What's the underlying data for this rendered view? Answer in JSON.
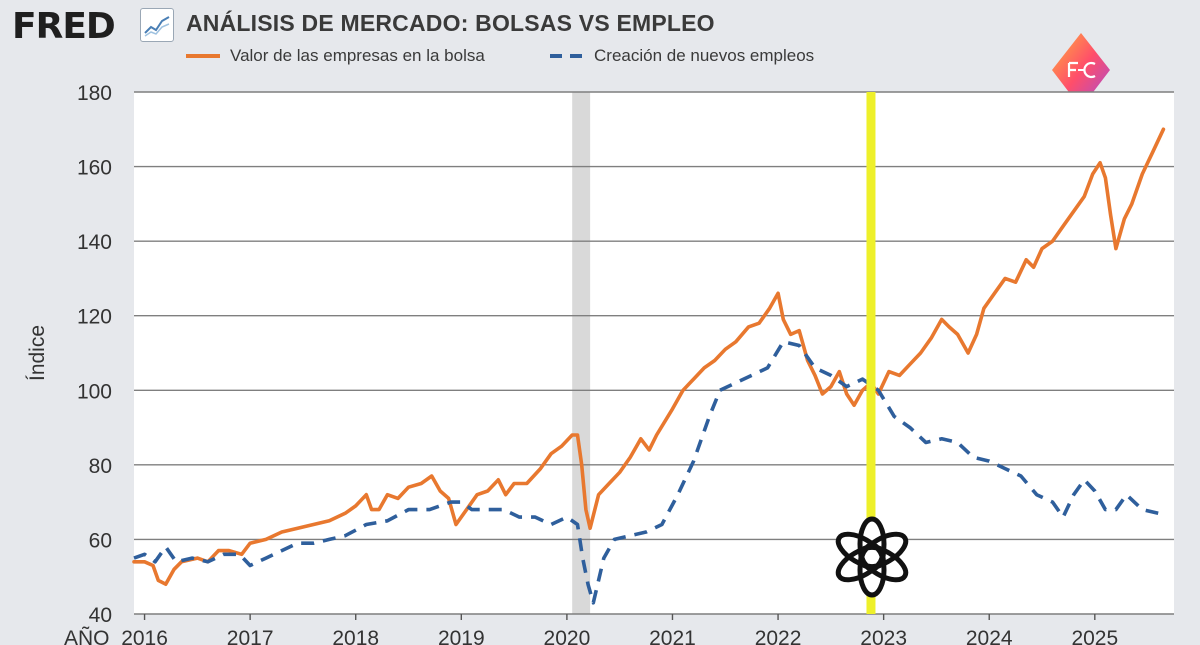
{
  "header": {
    "logo_text": "FRED",
    "title": "ANÁLISIS DE MERCADO: BOLSAS VS EMPLEO"
  },
  "colors": {
    "stock": "#e8782f",
    "employment": "#2f5f9c",
    "recession_band": "#d9d9d9",
    "highlight_line": "#eef02a",
    "plot_background": "#ffffff",
    "gridline": "#7f7f7f"
  },
  "icons": {
    "fred_chart": "trend-line-icon",
    "brand": "fc-diamond-logo-icon",
    "openai": "openai-knot-logo"
  },
  "chart_data": {
    "type": "line",
    "title": "ANÁLISIS DE MERCADO: BOLSAS VS EMPLEO",
    "ylabel": "Índice",
    "xlabel": "AÑO",
    "xlim": [
      2015.9,
      2025.75
    ],
    "ylim": [
      40,
      180
    ],
    "xticks": [
      2016,
      2017,
      2018,
      2019,
      2020,
      2021,
      2022,
      2023,
      2024,
      2025
    ],
    "yticks": [
      40,
      60,
      80,
      100,
      120,
      140,
      160,
      180
    ],
    "grid": "horizontal",
    "legend_position": "top-left",
    "shaded_region": [
      2020.05,
      2020.22
    ],
    "highlight_line_x": 2022.88,
    "series": [
      {
        "name": "Valor de las empresas en la bolsa",
        "style": "solid",
        "points": [
          [
            2015.9,
            54
          ],
          [
            2016.0,
            54
          ],
          [
            2016.08,
            53
          ],
          [
            2016.13,
            49
          ],
          [
            2016.2,
            48
          ],
          [
            2016.28,
            52
          ],
          [
            2016.35,
            54
          ],
          [
            2016.5,
            55
          ],
          [
            2016.6,
            54
          ],
          [
            2016.7,
            57
          ],
          [
            2016.8,
            57
          ],
          [
            2016.92,
            56
          ],
          [
            2017.0,
            59
          ],
          [
            2017.15,
            60
          ],
          [
            2017.3,
            62
          ],
          [
            2017.45,
            63
          ],
          [
            2017.6,
            64
          ],
          [
            2017.75,
            65
          ],
          [
            2017.9,
            67
          ],
          [
            2018.0,
            69
          ],
          [
            2018.1,
            72
          ],
          [
            2018.15,
            68
          ],
          [
            2018.22,
            68
          ],
          [
            2018.3,
            72
          ],
          [
            2018.4,
            71
          ],
          [
            2018.5,
            74
          ],
          [
            2018.62,
            75
          ],
          [
            2018.72,
            77
          ],
          [
            2018.8,
            73
          ],
          [
            2018.88,
            71
          ],
          [
            2018.95,
            64
          ],
          [
            2019.05,
            68
          ],
          [
            2019.15,
            72
          ],
          [
            2019.25,
            73
          ],
          [
            2019.35,
            76
          ],
          [
            2019.42,
            72
          ],
          [
            2019.5,
            75
          ],
          [
            2019.62,
            75
          ],
          [
            2019.75,
            79
          ],
          [
            2019.85,
            83
          ],
          [
            2019.95,
            85
          ],
          [
            2020.05,
            88
          ],
          [
            2020.1,
            88
          ],
          [
            2020.14,
            80
          ],
          [
            2020.18,
            68
          ],
          [
            2020.22,
            63
          ],
          [
            2020.3,
            72
          ],
          [
            2020.4,
            75
          ],
          [
            2020.5,
            78
          ],
          [
            2020.6,
            82
          ],
          [
            2020.7,
            87
          ],
          [
            2020.78,
            84
          ],
          [
            2020.85,
            88
          ],
          [
            2021.0,
            95
          ],
          [
            2021.1,
            100
          ],
          [
            2021.2,
            103
          ],
          [
            2021.3,
            106
          ],
          [
            2021.4,
            108
          ],
          [
            2021.5,
            111
          ],
          [
            2021.6,
            113
          ],
          [
            2021.72,
            117
          ],
          [
            2021.82,
            118
          ],
          [
            2021.92,
            122
          ],
          [
            2022.0,
            126
          ],
          [
            2022.05,
            119
          ],
          [
            2022.12,
            115
          ],
          [
            2022.2,
            116
          ],
          [
            2022.28,
            108
          ],
          [
            2022.35,
            104
          ],
          [
            2022.42,
            99
          ],
          [
            2022.5,
            101
          ],
          [
            2022.58,
            105
          ],
          [
            2022.65,
            99
          ],
          [
            2022.72,
            96
          ],
          [
            2022.8,
            100
          ],
          [
            2022.88,
            102
          ],
          [
            2022.95,
            99
          ],
          [
            2023.05,
            105
          ],
          [
            2023.15,
            104
          ],
          [
            2023.25,
            107
          ],
          [
            2023.35,
            110
          ],
          [
            2023.45,
            114
          ],
          [
            2023.55,
            119
          ],
          [
            2023.62,
            117
          ],
          [
            2023.7,
            115
          ],
          [
            2023.8,
            110
          ],
          [
            2023.88,
            115
          ],
          [
            2023.95,
            122
          ],
          [
            2024.05,
            126
          ],
          [
            2024.15,
            130
          ],
          [
            2024.25,
            129
          ],
          [
            2024.35,
            135
          ],
          [
            2024.42,
            133
          ],
          [
            2024.5,
            138
          ],
          [
            2024.6,
            140
          ],
          [
            2024.7,
            144
          ],
          [
            2024.8,
            148
          ],
          [
            2024.9,
            152
          ],
          [
            2024.98,
            158
          ],
          [
            2025.05,
            161
          ],
          [
            2025.1,
            157
          ],
          [
            2025.15,
            147
          ],
          [
            2025.2,
            138
          ],
          [
            2025.28,
            146
          ],
          [
            2025.35,
            150
          ],
          [
            2025.45,
            158
          ],
          [
            2025.55,
            164
          ],
          [
            2025.65,
            170
          ]
        ]
      },
      {
        "name": "Creación de nuevos empleos",
        "style": "dashed",
        "points": [
          [
            2015.9,
            55
          ],
          [
            2016.0,
            56
          ],
          [
            2016.1,
            54
          ],
          [
            2016.2,
            58
          ],
          [
            2016.3,
            54
          ],
          [
            2016.45,
            55
          ],
          [
            2016.6,
            54
          ],
          [
            2016.75,
            56
          ],
          [
            2016.9,
            56
          ],
          [
            2017.0,
            53
          ],
          [
            2017.15,
            55
          ],
          [
            2017.3,
            57
          ],
          [
            2017.45,
            59
          ],
          [
            2017.6,
            59
          ],
          [
            2017.75,
            60
          ],
          [
            2017.9,
            61
          ],
          [
            2018.1,
            64
          ],
          [
            2018.3,
            65
          ],
          [
            2018.5,
            68
          ],
          [
            2018.7,
            68
          ],
          [
            2018.9,
            70
          ],
          [
            2019.0,
            70
          ],
          [
            2019.1,
            68
          ],
          [
            2019.25,
            68
          ],
          [
            2019.4,
            68
          ],
          [
            2019.55,
            66
          ],
          [
            2019.7,
            66
          ],
          [
            2019.85,
            64
          ],
          [
            2020.0,
            66
          ],
          [
            2020.1,
            64
          ],
          [
            2020.15,
            55
          ],
          [
            2020.2,
            48
          ],
          [
            2020.25,
            43
          ],
          [
            2020.35,
            55
          ],
          [
            2020.45,
            60
          ],
          [
            2020.6,
            61
          ],
          [
            2020.75,
            62
          ],
          [
            2020.9,
            64
          ],
          [
            2021.05,
            72
          ],
          [
            2021.2,
            81
          ],
          [
            2021.35,
            93
          ],
          [
            2021.45,
            100
          ],
          [
            2021.6,
            102
          ],
          [
            2021.75,
            104
          ],
          [
            2021.9,
            106
          ],
          [
            2022.05,
            113
          ],
          [
            2022.2,
            112
          ],
          [
            2022.35,
            106
          ],
          [
            2022.5,
            104
          ],
          [
            2022.65,
            101
          ],
          [
            2022.8,
            103
          ],
          [
            2022.95,
            100
          ],
          [
            2023.1,
            93
          ],
          [
            2023.25,
            90
          ],
          [
            2023.4,
            86
          ],
          [
            2023.55,
            87
          ],
          [
            2023.7,
            86
          ],
          [
            2023.85,
            82
          ],
          [
            2024.0,
            81
          ],
          [
            2024.15,
            79
          ],
          [
            2024.3,
            77
          ],
          [
            2024.45,
            72
          ],
          [
            2024.6,
            70
          ],
          [
            2024.7,
            66
          ],
          [
            2024.8,
            72
          ],
          [
            2024.9,
            76
          ],
          [
            2025.0,
            73
          ],
          [
            2025.1,
            68
          ],
          [
            2025.2,
            68
          ],
          [
            2025.3,
            72
          ],
          [
            2025.45,
            68
          ],
          [
            2025.6,
            67
          ]
        ]
      }
    ]
  }
}
